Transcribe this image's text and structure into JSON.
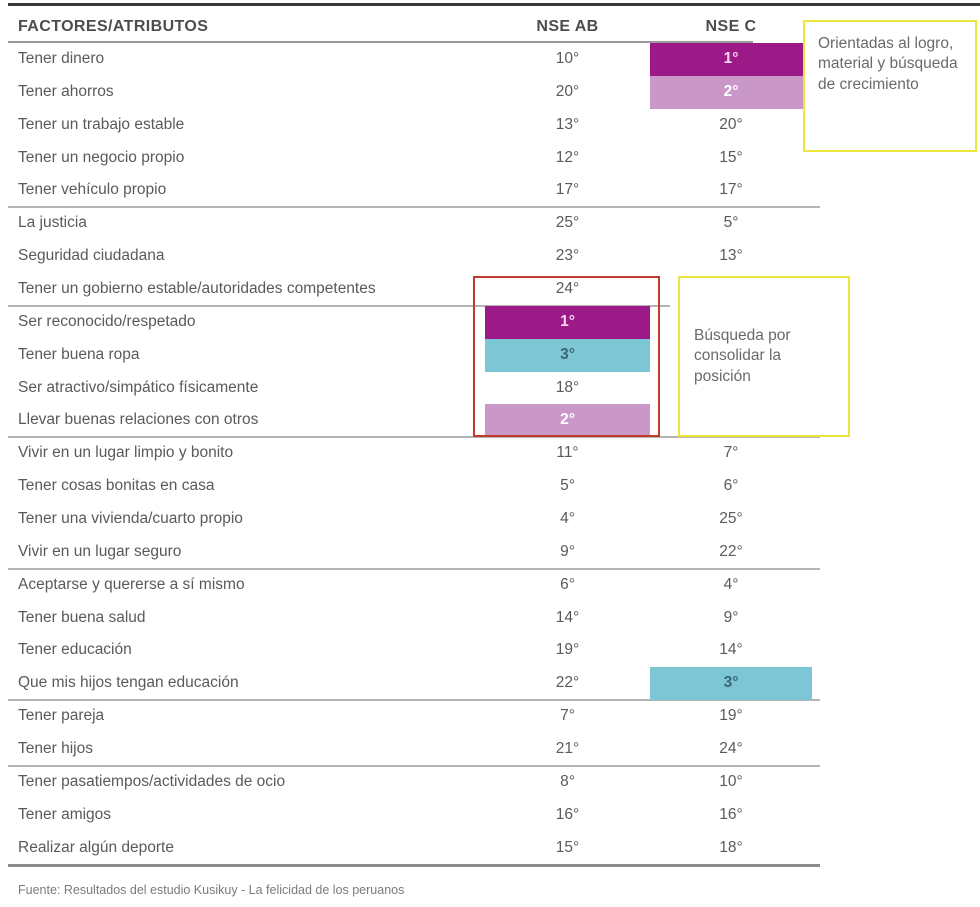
{
  "header": {
    "factors": "FACTORES/ATRIBUTOS",
    "nse_ab": "NSE AB",
    "nse_c": "NSE C"
  },
  "palette": {
    "magenta": "#9c1a87",
    "magenta_text": "#f3d9ef",
    "lilac": "#c998c9",
    "lilac_text": "#ffffff",
    "cyan": "#7cc6d6",
    "cyan_text": "#3e6573",
    "red_outline": "#c13b2a",
    "yellow_outline": "#ece63a"
  },
  "table": {
    "rows": [
      {
        "label": "Tener dinero",
        "ab": "10°",
        "c": "1°",
        "c_bg": "magenta"
      },
      {
        "label": "Tener ahorros",
        "ab": "20°",
        "c": "2°",
        "c_bg": "lilac"
      },
      {
        "label": "Tener un trabajo estable",
        "ab": "13°",
        "c": "20°"
      },
      {
        "label": "Tener un negocio propio",
        "ab": "12°",
        "c": "15°"
      },
      {
        "label": "Tener vehículo propio",
        "ab": "17°",
        "c": "17°",
        "group_end": true
      },
      {
        "label": "La justicia",
        "ab": "25°",
        "c": "5°"
      },
      {
        "label": "Seguridad ciudadana",
        "ab": "23°",
        "c": "13°"
      },
      {
        "label": "Tener un gobierno estable/autoridades competentes",
        "ab": "24°",
        "c": "",
        "group_end": true,
        "short": true
      },
      {
        "label": "Ser reconocido/respetado",
        "ab": "1°",
        "ab_bg": "magenta",
        "c": ""
      },
      {
        "label": "Tener buena ropa",
        "ab": "3°",
        "ab_bg": "cyan",
        "c": ""
      },
      {
        "label": "Ser atractivo/simpático físicamente",
        "ab": "18°",
        "c": ""
      },
      {
        "label": "Llevar buenas relaciones con otros",
        "ab": "2°",
        "ab_bg": "lilac",
        "c": "",
        "group_end": true
      },
      {
        "label": "Vivir en un lugar limpio y bonito",
        "ab": "11°",
        "c": "7°"
      },
      {
        "label": "Tener cosas bonitas en casa",
        "ab": "5°",
        "c": "6°"
      },
      {
        "label": "Tener una vivienda/cuarto propio",
        "ab": "4°",
        "c": "25°"
      },
      {
        "label": "Vivir en un lugar seguro",
        "ab": "9°",
        "c": "22°",
        "group_end": true
      },
      {
        "label": "Aceptarse y quererse a sí mismo",
        "ab": "6°",
        "c": "4°"
      },
      {
        "label": "Tener buena salud",
        "ab": "14°",
        "c": "9°"
      },
      {
        "label": "Tener educación",
        "ab": "19°",
        "c": "14°"
      },
      {
        "label": "Que mis hijos tengan educación",
        "ab": "22°",
        "c": "3°",
        "c_bg": "cyan",
        "group_end": true
      },
      {
        "label": "Tener pareja",
        "ab": "7°",
        "c": "19°"
      },
      {
        "label": "Tener hijos",
        "ab": "21°",
        "c": "24°",
        "group_end": true
      },
      {
        "label": "Tener pasatiempos/actividades de ocio",
        "ab": "8°",
        "c": "10°"
      },
      {
        "label": "Tener amigos",
        "ab": "16°",
        "c": "16°"
      },
      {
        "label": "Realizar algún deporte",
        "ab": "15°",
        "c": "18°"
      }
    ]
  },
  "annotations": {
    "growth": "Orientadas al logro, material y búsqueda de crecimiento",
    "consolidate": "Búsqueda por consolidar la posición"
  },
  "footer": {
    "source": "Fuente: Resultados del estudio Kusikuy - La felicidad de los peruanos"
  },
  "chart_data": {
    "type": "table",
    "title": "FACTORES/ATRIBUTOS",
    "columns": [
      "NSE AB",
      "NSE C"
    ],
    "categories": [
      "Tener dinero",
      "Tener ahorros",
      "Tener un trabajo estable",
      "Tener un negocio propio",
      "Tener vehículo propio",
      "La justicia",
      "Seguridad ciudadana",
      "Tener un gobierno estable/autoridades competentes",
      "Ser reconocido/respetado",
      "Tener buena ropa",
      "Ser atractivo/simpático físicamente",
      "Llevar buenas relaciones con otros",
      "Vivir en un lugar limpio y bonito",
      "Tener cosas bonitas en casa",
      "Tener una vivienda/cuarto propio",
      "Vivir en un lugar seguro",
      "Aceptarse y quererse a sí mismo",
      "Tener buena salud",
      "Tener educación",
      "Que mis hijos tengan educación",
      "Tener pareja",
      "Tener hijos",
      "Tener pasatiempos/actividades de ocio",
      "Tener amigos",
      "Realizar algún deporte"
    ],
    "series": [
      {
        "name": "NSE AB",
        "values": [
          10,
          20,
          13,
          12,
          17,
          25,
          23,
          24,
          1,
          3,
          18,
          2,
          11,
          5,
          4,
          9,
          6,
          14,
          19,
          22,
          7,
          21,
          8,
          16,
          15
        ]
      },
      {
        "name": "NSE C",
        "values": [
          1,
          2,
          20,
          15,
          17,
          5,
          13,
          null,
          null,
          null,
          null,
          null,
          7,
          6,
          25,
          22,
          4,
          9,
          14,
          3,
          19,
          24,
          10,
          16,
          18
        ]
      }
    ],
    "highlights": [
      {
        "row": "Tener dinero",
        "column": "NSE C",
        "rank": 1,
        "color": "magenta"
      },
      {
        "row": "Tener ahorros",
        "column": "NSE C",
        "rank": 2,
        "color": "lilac"
      },
      {
        "row": "Ser reconocido/respetado",
        "column": "NSE AB",
        "rank": 1,
        "color": "magenta"
      },
      {
        "row": "Tener buena ropa",
        "column": "NSE AB",
        "rank": 3,
        "color": "cyan"
      },
      {
        "row": "Llevar buenas relaciones con otros",
        "column": "NSE AB",
        "rank": 2,
        "color": "lilac"
      },
      {
        "row": "Que mis hijos tengan educación",
        "column": "NSE C",
        "rank": 3,
        "color": "cyan"
      }
    ],
    "annotations": [
      "Orientadas al logro, material y búsqueda de crecimiento",
      "Búsqueda por consolidar la posición"
    ],
    "footnote": "Fuente: Resultados del estudio Kusikuy - La felicidad de los peruanos"
  }
}
